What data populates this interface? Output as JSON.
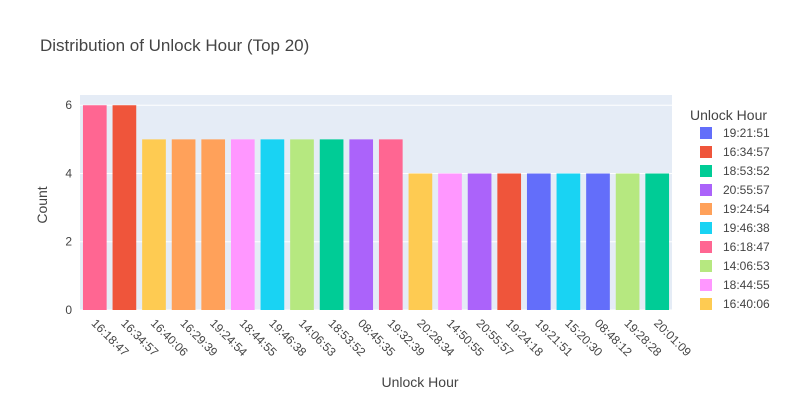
{
  "chart_data": {
    "type": "bar",
    "title": "Distribution of Unlock Hour (Top 20)",
    "xlabel": "Unlock Hour",
    "ylabel": "Count",
    "ylim": [
      0,
      6.3
    ],
    "yticks": [
      0,
      2,
      4,
      6
    ],
    "legend_title": "Unlock Hour",
    "legend_position": "right",
    "plot_background": "#E5ECF6",
    "categories": [
      "16:18:47",
      "16:34:57",
      "16:40:06",
      "16:29:39",
      "19:24:54",
      "18:44:55",
      "19:46:38",
      "14:06:53",
      "18:53:52",
      "08:45:35",
      "19:32:39",
      "20:28:34",
      "14:50:55",
      "20:55:57",
      "19:24:18",
      "19:21:51",
      "15:20:30",
      "08:48:12",
      "19:28:28",
      "20:01:09"
    ],
    "values": [
      6,
      6,
      5,
      5,
      5,
      5,
      5,
      5,
      5,
      5,
      5,
      4,
      4,
      4,
      4,
      4,
      4,
      4,
      4,
      4
    ],
    "bar_colors": [
      "#FF6692",
      "#EF553B",
      "#FECB52",
      "#FFA15A",
      "#FFA15A",
      "#FF97FF",
      "#19D3F3",
      "#B6E880",
      "#00CC96",
      "#AB63FA",
      "#FF6692",
      "#FECB52",
      "#FF97FF",
      "#AB63FA",
      "#EF553B",
      "#636EFA",
      "#19D3F3",
      "#636EFA",
      "#B6E880",
      "#00CC96"
    ],
    "legend": [
      {
        "name": "19:21:51",
        "color": "#636EFA"
      },
      {
        "name": "16:34:57",
        "color": "#EF553B"
      },
      {
        "name": "18:53:52",
        "color": "#00CC96"
      },
      {
        "name": "20:55:57",
        "color": "#AB63FA"
      },
      {
        "name": "19:24:54",
        "color": "#FFA15A"
      },
      {
        "name": "19:46:38",
        "color": "#19D3F3"
      },
      {
        "name": "16:18:47",
        "color": "#FF6692"
      },
      {
        "name": "14:06:53",
        "color": "#B6E880"
      },
      {
        "name": "18:44:55",
        "color": "#FF97FF"
      },
      {
        "name": "16:40:06",
        "color": "#FECB52"
      }
    ]
  }
}
